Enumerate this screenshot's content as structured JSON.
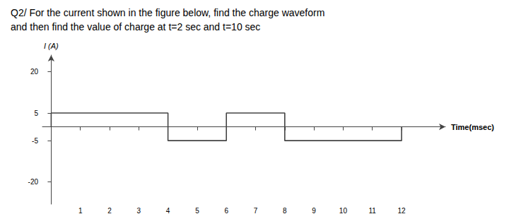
{
  "chart_data": {
    "type": "line",
    "title": "Q2/ For the current shown in the figure below, find the charge waveform",
    "subtitle": "and then find the value of charge at t=2 sec and t=10 sec",
    "x_label": "Time(msec)",
    "y_label": "I (A)",
    "x": [
      0,
      0,
      4,
      4,
      6,
      6,
      8,
      8,
      12,
      12
    ],
    "values": [
      0,
      5,
      5,
      -5,
      -5,
      5,
      5,
      -5,
      -5,
      0
    ],
    "color": "#444444",
    "xlim": [
      -0.3,
      13.5
    ],
    "ylim": [
      -28,
      26
    ],
    "xticks": [
      1,
      2,
      3,
      4,
      5,
      6,
      7,
      8,
      9,
      10,
      11,
      12
    ],
    "yticks": [
      -20,
      -5,
      5,
      20
    ],
    "grid": false
  }
}
